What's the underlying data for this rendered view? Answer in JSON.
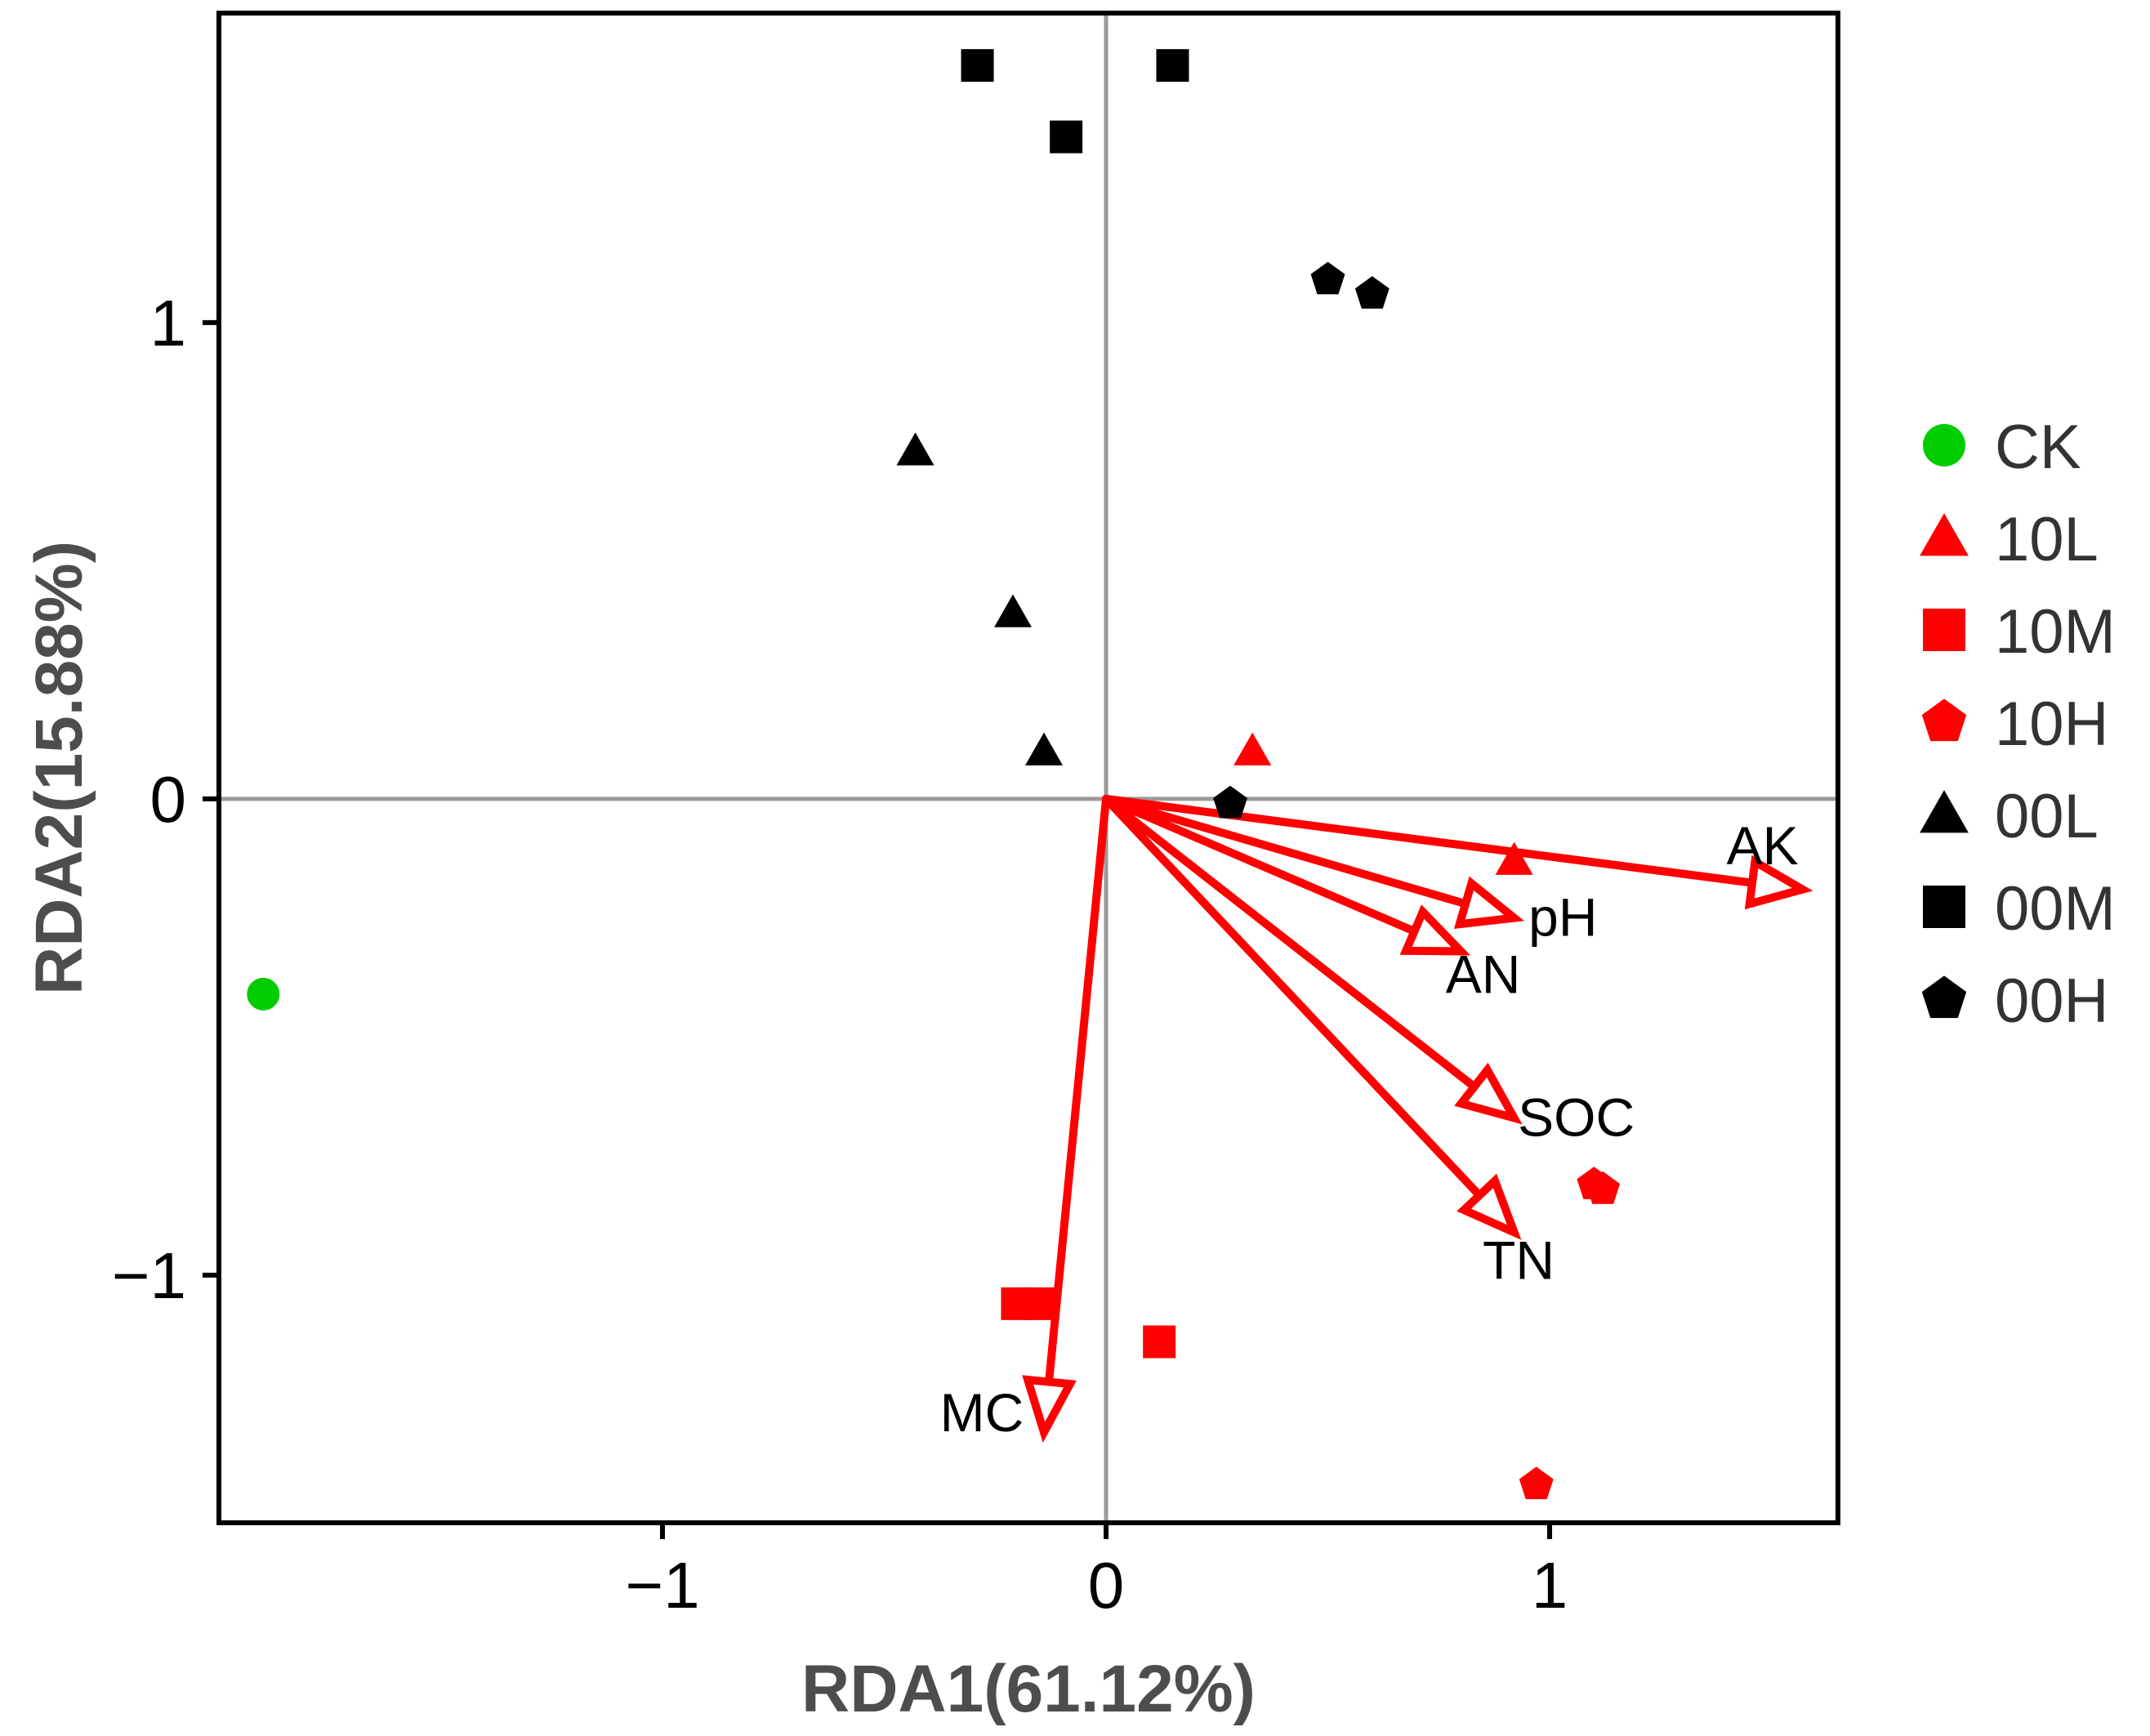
{
  "chart_data": {
    "type": "scatter",
    "subtype": "RDA biplot",
    "xlabel": "RDA1(61.12%)",
    "ylabel": "RDA2(15.88%)",
    "xlim": [
      -2.0,
      1.65
    ],
    "ylim": [
      -1.52,
      1.65
    ],
    "xticks": [
      {
        "value": -1,
        "label": "−1"
      },
      {
        "value": 0,
        "label": "0"
      },
      {
        "value": 1,
        "label": "1"
      }
    ],
    "yticks": [
      {
        "value": -1,
        "label": "−1"
      },
      {
        "value": 0,
        "label": "0"
      },
      {
        "value": 1,
        "label": "1"
      }
    ],
    "zero_lines": true,
    "series": [
      {
        "name": "CK",
        "shape": "circle",
        "color": "#00cc00",
        "points": [
          [
            -1.9,
            -0.41
          ]
        ]
      },
      {
        "name": "10L",
        "shape": "triangle",
        "color": "#ff0000",
        "points": [
          [
            0.33,
            0.1
          ],
          [
            0.92,
            -0.13
          ]
        ]
      },
      {
        "name": "10M",
        "shape": "square",
        "color": "#ff0000",
        "points": [
          [
            -0.2,
            -1.06
          ],
          [
            -0.15,
            -1.06
          ],
          [
            0.12,
            -1.14
          ]
        ]
      },
      {
        "name": "10H",
        "shape": "pentagon",
        "color": "#ff0000",
        "points": [
          [
            1.1,
            -0.81
          ],
          [
            1.12,
            -0.82
          ],
          [
            0.97,
            -1.44
          ]
        ]
      },
      {
        "name": "00L",
        "shape": "triangle",
        "color": "#000000",
        "points": [
          [
            -0.43,
            0.73
          ],
          [
            -0.21,
            0.39
          ],
          [
            -0.14,
            0.1
          ]
        ]
      },
      {
        "name": "00M",
        "shape": "square",
        "color": "#000000",
        "points": [
          [
            -0.29,
            1.54
          ],
          [
            0.15,
            1.54
          ],
          [
            -0.09,
            1.39
          ]
        ]
      },
      {
        "name": "00H",
        "shape": "pentagon",
        "color": "#000000",
        "points": [
          [
            0.5,
            1.09
          ],
          [
            0.6,
            1.06
          ],
          [
            0.28,
            -0.01
          ]
        ]
      }
    ],
    "arrows": [
      {
        "name": "AK",
        "x": 1.57,
        "y": -0.19,
        "label_x": 1.48,
        "label_y": -0.1
      },
      {
        "name": "pH",
        "x": 0.92,
        "y": -0.25,
        "label_x": 1.03,
        "label_y": -0.25
      },
      {
        "name": "AN",
        "x": 0.8,
        "y": -0.32,
        "label_x": 0.85,
        "label_y": -0.37
      },
      {
        "name": "SOC",
        "x": 0.92,
        "y": -0.67,
        "label_x": 1.06,
        "label_y": -0.67
      },
      {
        "name": "TN",
        "x": 0.92,
        "y": -0.91,
        "label_x": 0.93,
        "label_y": -0.97
      },
      {
        "name": "MC",
        "x": -0.14,
        "y": -1.33,
        "label_x": -0.28,
        "label_y": -1.29
      }
    ],
    "arrow_color": "#ff0000",
    "legend_position": "right"
  }
}
